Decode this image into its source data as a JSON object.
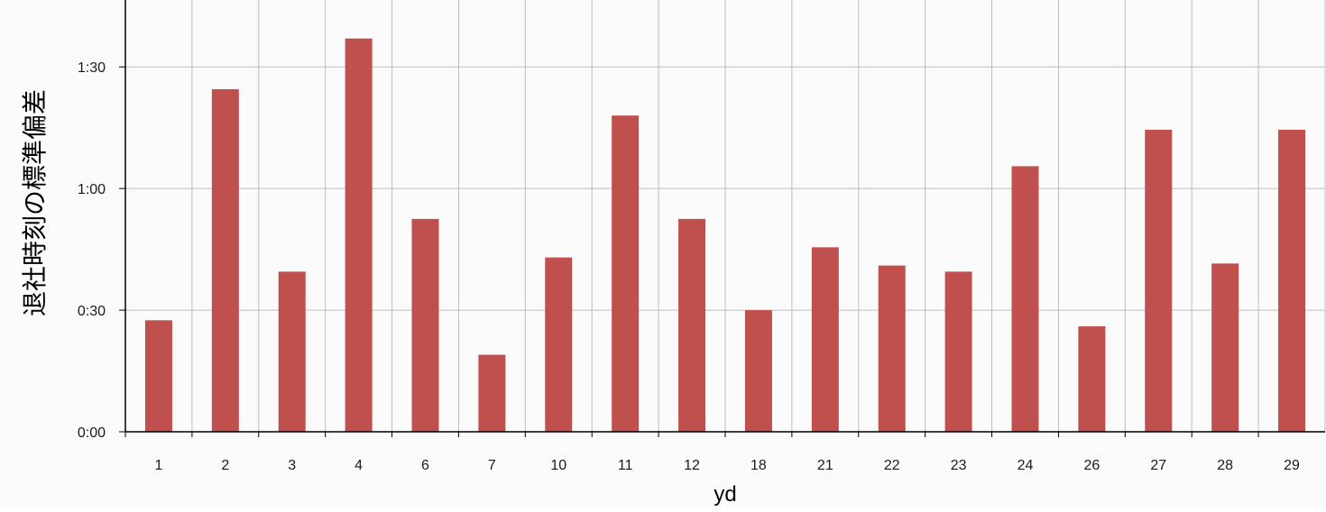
{
  "chart_data": {
    "type": "bar",
    "title": "",
    "xlabel": "yd",
    "ylabel": "退社時刻の標準偏差",
    "categories": [
      "1",
      "2",
      "3",
      "4",
      "6",
      "7",
      "10",
      "11",
      "12",
      "18",
      "21",
      "22",
      "23",
      "24",
      "26",
      "27",
      "28",
      "29"
    ],
    "values_minutes": [
      27.5,
      84.5,
      39.5,
      97,
      52.5,
      19,
      43,
      78,
      52.5,
      30,
      45.5,
      41,
      39.5,
      65.5,
      26,
      74.5,
      41.5,
      74.5
    ],
    "y_ticks": [
      {
        "value_minutes": 0,
        "label": "0:00"
      },
      {
        "value_minutes": 30,
        "label": "0:30"
      },
      {
        "value_minutes": 60,
        "label": "1:00"
      },
      {
        "value_minutes": 90,
        "label": "1:30"
      }
    ],
    "ylim_minutes": [
      0,
      106.5
    ],
    "grid": true,
    "legend": "none",
    "colors": {
      "bar": "#c0504d",
      "grid": "#bdbdbd",
      "axis": "#000000",
      "background": "#fbfbfb"
    }
  }
}
